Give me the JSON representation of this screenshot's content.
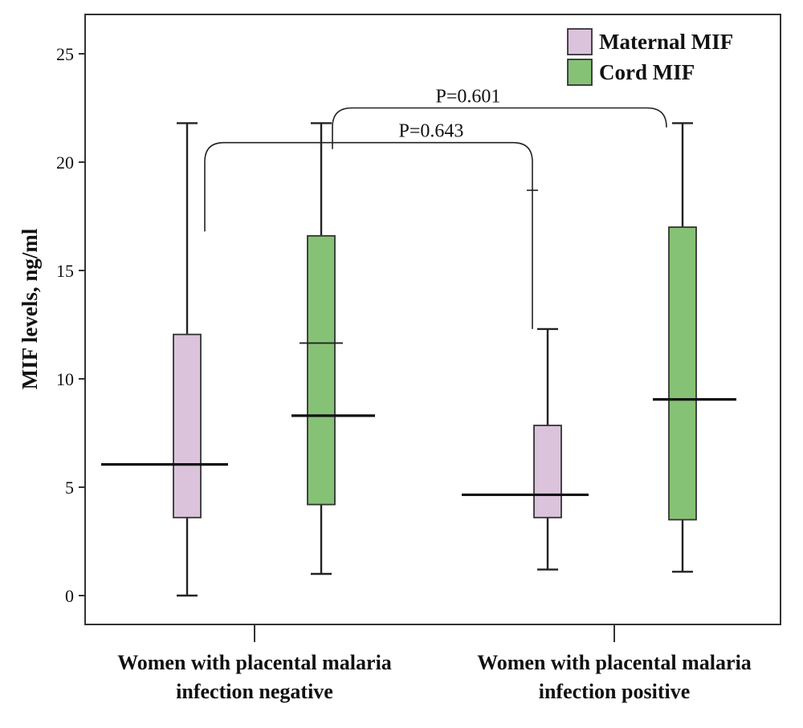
{
  "chart_data": {
    "type": "box",
    "title": "",
    "xlabel": "",
    "ylabel": "MIF levels, ng/ml",
    "ylim": [
      -1.4,
      26.2
    ],
    "yticks": [
      "0",
      "5",
      "10",
      "15",
      "20",
      "25"
    ],
    "categories": [
      {
        "line1": "Women with placental malaria",
        "line2": "infection negative"
      },
      {
        "line1": "Women with placental malaria",
        "line2": "infection positive"
      }
    ],
    "legend_position": "top-right",
    "series": [
      {
        "name": "Maternal MIF",
        "color": "#dcc3dc",
        "boxes": [
          {
            "min": 0.0,
            "q1": 3.6,
            "median": 6.05,
            "q3": 12.05,
            "max": 21.8
          },
          {
            "min": 1.2,
            "q1": 3.6,
            "median": 4.65,
            "q3": 7.85,
            "max": 12.3
          }
        ]
      },
      {
        "name": "Cord MIF",
        "color": "#86c276",
        "boxes": [
          {
            "min": 1.0,
            "q1": 4.2,
            "median": 8.3,
            "q3": 16.6,
            "max": 21.8,
            "extra_line": 11.65
          },
          {
            "min": 1.1,
            "q1": 3.5,
            "median": 9.05,
            "q3": 17.0,
            "max": 21.8
          }
        ]
      }
    ],
    "annotations": [
      {
        "text": "P=0.643",
        "compares": [
          "Maternal MIF / infection negative",
          "Maternal MIF / infection positive"
        ],
        "left_end": 16.8,
        "right_end": 12.3,
        "top": 20.9,
        "inner_tick": 18.7
      },
      {
        "text": "P=0.601",
        "compares": [
          "Cord MIF / infection negative",
          "Cord MIF / infection positive"
        ],
        "left_end": 20.6,
        "right_end": 21.6,
        "top": 22.5
      }
    ]
  }
}
